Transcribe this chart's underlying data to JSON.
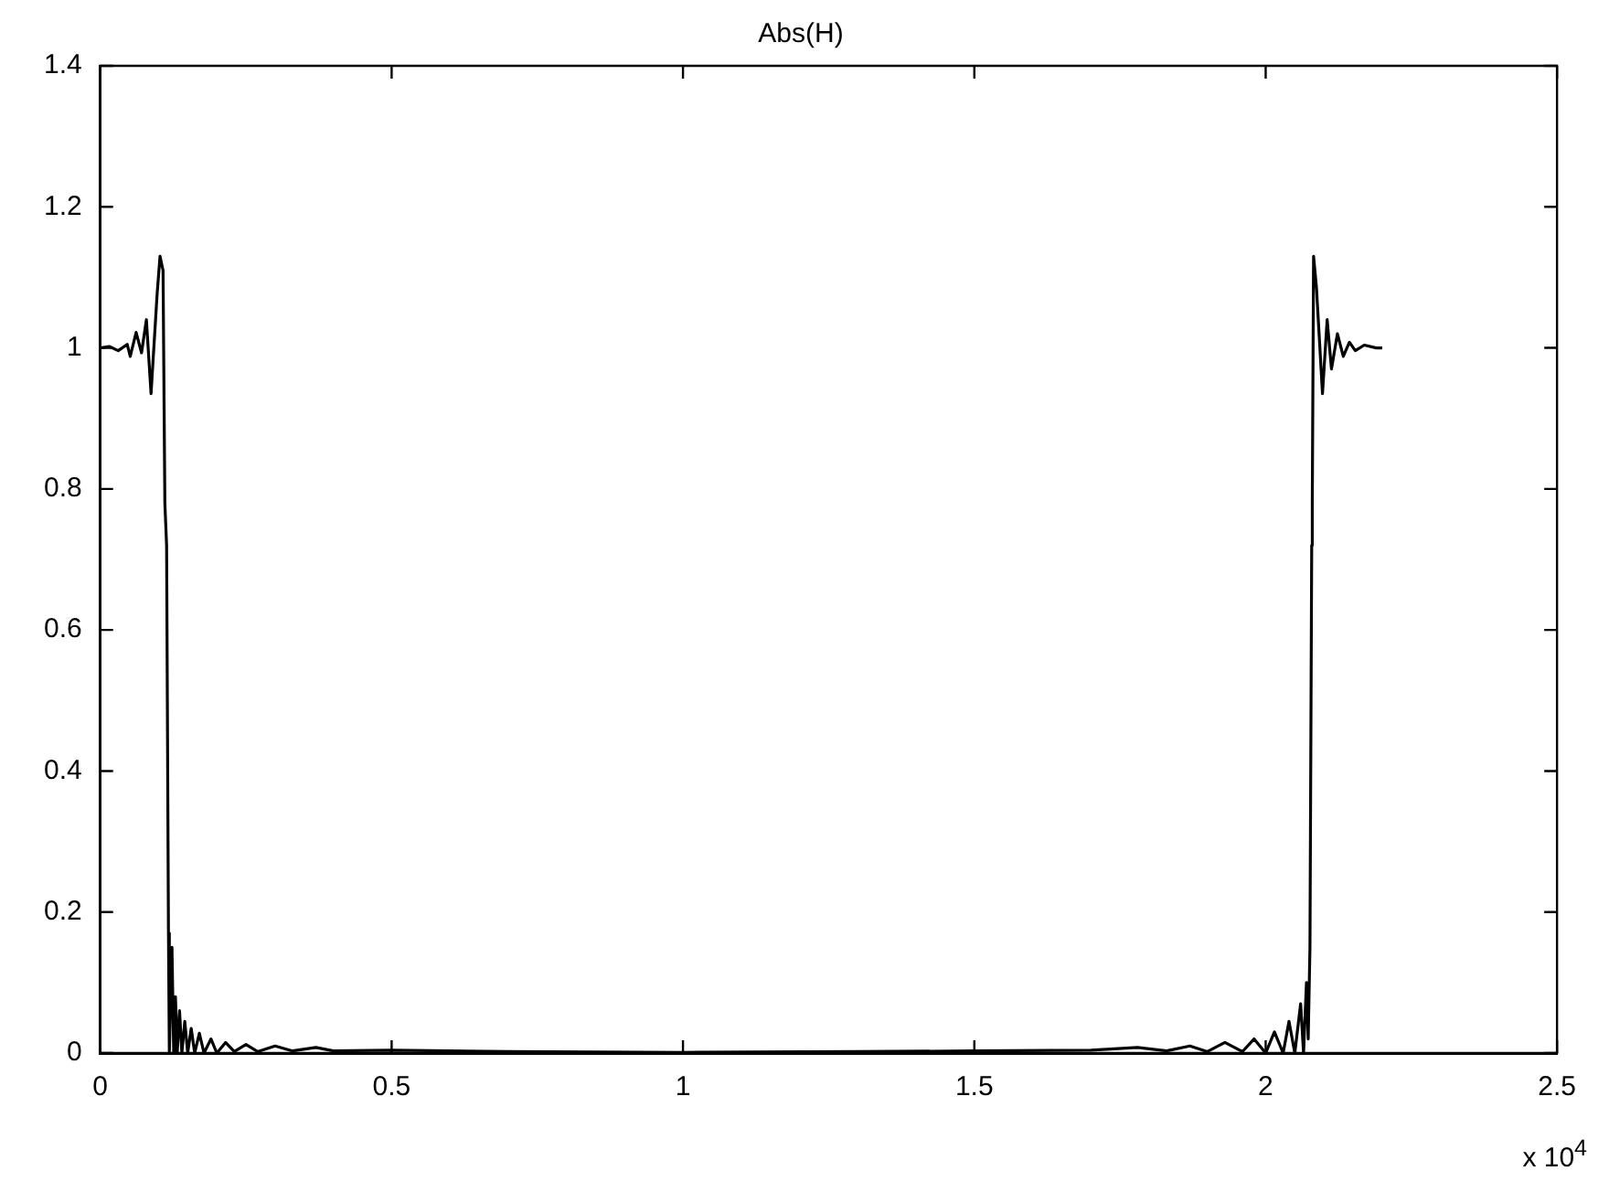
{
  "chart_data": {
    "type": "line",
    "title": "Abs(H)",
    "annotations": [
      "x 10$^{4}$"
    ],
    "xlim": [
      0,
      2.5
    ],
    "xticks": [
      0,
      0.5,
      1,
      1.5,
      2,
      2.5
    ],
    "ylim": [
      0,
      1.4
    ],
    "yticks": [
      0,
      0.2,
      0.4,
      0.6,
      0.8,
      1,
      1.2,
      1.4
    ],
    "grid": false,
    "legend": false,
    "marker": "none",
    "line_style": "solid",
    "series": [
      {
        "color": "#000000",
        "x": [
          0,
          0.0154,
          0.0308,
          0.0462,
          0.0514,
          0.0615,
          0.0708,
          0.0791,
          0.0871,
          0.0975,
          0.1025,
          0.1077,
          0.1108,
          0.1138,
          0.117,
          0.1185,
          0.123,
          0.126,
          0.129,
          0.132,
          0.136,
          0.14,
          0.145,
          0.15,
          0.156,
          0.162,
          0.17,
          0.178,
          0.19,
          0.2,
          0.215,
          0.23,
          0.25,
          0.27,
          0.3,
          0.33,
          0.37,
          0.4,
          0.5,
          0.7,
          1.0,
          1.3,
          1.5,
          1.7,
          1.78,
          1.83,
          1.87,
          1.9,
          1.93,
          1.96,
          1.98,
          2.0,
          2.015,
          2.03,
          2.04,
          2.05,
          2.06,
          2.065,
          2.07,
          2.073,
          2.076,
          2.079,
          2.08,
          2.0822,
          2.0871,
          2.0975,
          2.1055,
          2.1129,
          2.1231,
          2.1332,
          2.1437,
          2.1538,
          2.1692,
          2.1898,
          2.2
        ],
        "values": [
          1.0,
          1.002,
          0.996,
          1.005,
          0.988,
          1.022,
          0.993,
          1.04,
          0.935,
          1.076,
          1.13,
          1.11,
          0.78,
          0.72,
          0.17,
          0,
          0.15,
          0,
          0.08,
          0,
          0.06,
          0,
          0.045,
          0,
          0.035,
          0,
          0.028,
          0,
          0.02,
          0,
          0.015,
          0.002,
          0.012,
          0.002,
          0.01,
          0.003,
          0.008,
          0.003,
          0.004,
          0.002,
          0.001,
          0.002,
          0.003,
          0.004,
          0.008,
          0.003,
          0.01,
          0.002,
          0.015,
          0.002,
          0.02,
          0,
          0.03,
          0,
          0.045,
          0,
          0.07,
          0,
          0.1,
          0.02,
          0.15,
          0.72,
          0.78,
          1.13,
          1.086,
          0.935,
          1.04,
          0.97,
          1.02,
          0.988,
          1.008,
          0.996,
          1.004,
          1.0,
          1.0
        ]
      }
    ]
  }
}
